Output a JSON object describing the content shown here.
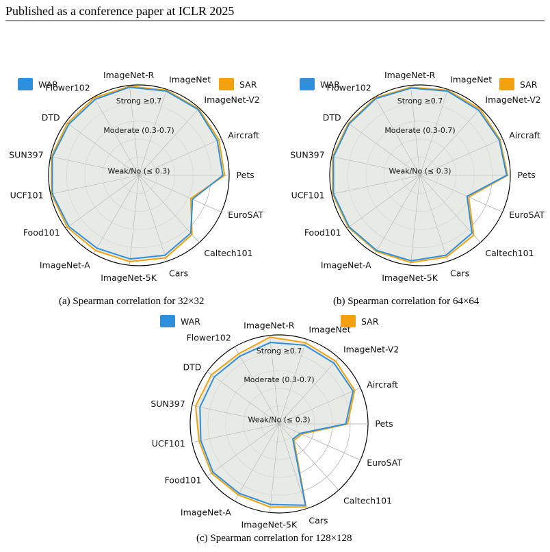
{
  "header": {
    "text": "Published as a conference paper at ICLR 2025"
  },
  "colors": {
    "war": "#2e8fdc",
    "sar": "#f2a20f",
    "fill": "#dfe3dc",
    "grid": "#b5b5b5",
    "outer": "#000000"
  },
  "chart_data": [
    {
      "type": "radar",
      "caption_prefix": "(a) Spearman correlation for ",
      "caption_res": "32×32",
      "axes": [
        "Pets",
        "EuroSAT",
        "Caltech101",
        "Cars",
        "ImageNet-5K",
        "ImageNet-A",
        "Food101",
        "UCF101",
        "SUN397",
        "DTD",
        "Flower102",
        "ImageNet-R",
        "ImageNet",
        "ImageNet-V2",
        "Aircraft"
      ],
      "rings": [
        {
          "label": "Strong ≥0.7",
          "r": 1.0
        },
        {
          "label": "Moderate (0.3-0.7)",
          "r": 0.7
        },
        {
          "label": "Weak/No (≤ 0.3)",
          "r": 0.3
        }
      ],
      "series": [
        {
          "name": "WAR",
          "values": [
            0.93,
            0.65,
            0.86,
            0.93,
            0.93,
            0.93,
            0.96,
            0.98,
            0.98,
            0.96,
            0.97,
            0.98,
            0.98,
            0.98,
            0.95
          ]
        },
        {
          "name": "SAR",
          "values": [
            0.95,
            0.63,
            0.88,
            0.96,
            0.96,
            0.96,
            0.98,
            0.99,
            0.99,
            0.98,
            0.99,
            0.99,
            0.99,
            0.99,
            0.97
          ]
        }
      ]
    },
    {
      "type": "radar",
      "caption_prefix": "(b) Spearman correlation for ",
      "caption_res": "64×64",
      "axes": [
        "Pets",
        "EuroSAT",
        "Caltech101",
        "Cars",
        "ImageNet-5K",
        "ImageNet-A",
        "Food101",
        "UCF101",
        "SUN397",
        "DTD",
        "Flower102",
        "ImageNet-R",
        "ImageNet",
        "ImageNet-V2",
        "Aircraft"
      ],
      "rings": [
        {
          "label": "Strong ≥0.7",
          "r": 1.0
        },
        {
          "label": "Moderate (0.3-0.7)",
          "r": 0.7
        },
        {
          "label": "Weak/No (≤ 0.3)",
          "r": 0.3
        }
      ],
      "series": [
        {
          "name": "WAR",
          "values": [
            0.96,
            0.57,
            0.86,
            0.93,
            0.95,
            0.96,
            0.97,
            0.98,
            0.98,
            0.97,
            0.98,
            0.97,
            0.98,
            0.97,
            0.96
          ]
        },
        {
          "name": "SAR",
          "values": [
            0.97,
            0.59,
            0.89,
            0.95,
            0.97,
            0.97,
            0.98,
            0.99,
            0.99,
            0.98,
            0.99,
            0.98,
            0.99,
            0.99,
            0.97
          ]
        }
      ]
    },
    {
      "type": "radar",
      "caption_prefix": "(c) Spearman correlation for ",
      "caption_res": "128×128",
      "axes": [
        "Pets",
        "EuroSAT",
        "Caltech101",
        "Cars",
        "ImageNet-5K",
        "ImageNet-A",
        "Food101",
        "UCF101",
        "SUN397",
        "DTD",
        "Flower102",
        "ImageNet-R",
        "ImageNet",
        "ImageNet-V2",
        "Aircraft"
      ],
      "rings": [
        {
          "label": "Strong ≥0.7",
          "r": 1.0
        },
        {
          "label": "Moderate (0.3-0.7)",
          "r": 0.7
        },
        {
          "label": "Weak/No (≤ 0.3)",
          "r": 0.3
        }
      ],
      "series": [
        {
          "name": "WAR",
          "values": [
            0.75,
            0.26,
            0.23,
            0.96,
            0.91,
            0.9,
            0.92,
            0.9,
            0.91,
            0.9,
            0.88,
            0.92,
            0.93,
            0.92,
            0.91
          ]
        },
        {
          "name": "SAR",
          "values": [
            0.77,
            0.28,
            0.25,
            0.98,
            0.94,
            0.92,
            0.94,
            0.92,
            0.96,
            0.94,
            0.91,
            0.98,
            0.96,
            0.95,
            0.93
          ]
        }
      ]
    }
  ]
}
